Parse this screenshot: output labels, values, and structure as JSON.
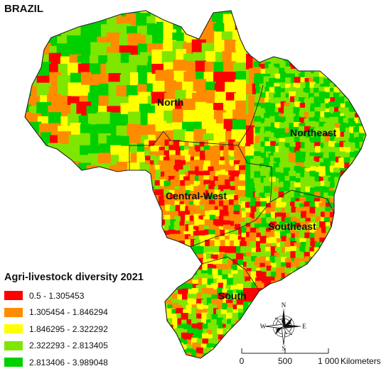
{
  "title": "BRAZIL",
  "regions": [
    {
      "id": "north",
      "label": "North"
    },
    {
      "id": "northeast",
      "label": "Northeast"
    },
    {
      "id": "central-west",
      "label": "Central-West"
    },
    {
      "id": "southeast",
      "label": "Southeast"
    },
    {
      "id": "south",
      "label": "South"
    }
  ],
  "legend": {
    "title": "Agri-livestock diversity 2021",
    "classes": [
      {
        "label": "0.5 - 1.305453",
        "color": "#ff0000"
      },
      {
        "label": "1.305454 - 1.846294",
        "color": "#ff8c00"
      },
      {
        "label": "1.846295 - 2.322292",
        "color": "#ffff00"
      },
      {
        "label": "2.322293 - 2.813405",
        "color": "#7fe600"
      },
      {
        "label": "2.813406 - 3.989048",
        "color": "#00d000"
      }
    ]
  },
  "compass": {
    "n": "N",
    "s": "S",
    "e": "E",
    "w": "W"
  },
  "scale": {
    "ticks": [
      "0",
      "500",
      "1 000"
    ],
    "unit": "Kilometers"
  }
}
